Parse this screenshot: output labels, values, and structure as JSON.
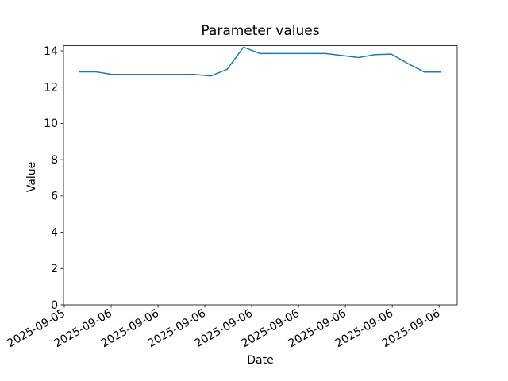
{
  "figure": {
    "background": "#ffffff",
    "text_color": "#000000"
  },
  "chart_data": {
    "type": "line",
    "title": "Parameter values",
    "xlabel": "Date",
    "ylabel": "Value",
    "grid": false,
    "legend": "none",
    "ylim": [
      0,
      14.28
    ],
    "y_ticks": [
      0,
      2,
      4,
      6,
      8,
      10,
      12,
      14
    ],
    "x_tick_labels": [
      "2025-09-05",
      "2025-09-06",
      "2025-09-06",
      "2025-09-06",
      "2025-09-06",
      "2025-09-06",
      "2025-09-06",
      "2025-09-06",
      "2025-09-06"
    ],
    "x_tick_rotation_deg": 30,
    "series": [
      {
        "name": "parameter-values-line",
        "color": "#1f77b4",
        "values": [
          12.84,
          12.84,
          12.7,
          12.7,
          12.7,
          12.7,
          12.7,
          12.7,
          12.61,
          12.98,
          14.2,
          13.85,
          13.85,
          13.85,
          13.85,
          13.85,
          13.74,
          13.63,
          13.79,
          13.82,
          13.3,
          12.83,
          12.83
        ]
      }
    ],
    "layout_hints": {
      "tick_x_start_frac": 0.002,
      "tick_x_end_frac": 0.954,
      "line_x_start_frac": 0.04,
      "line_x_end_frac": 0.958
    }
  }
}
